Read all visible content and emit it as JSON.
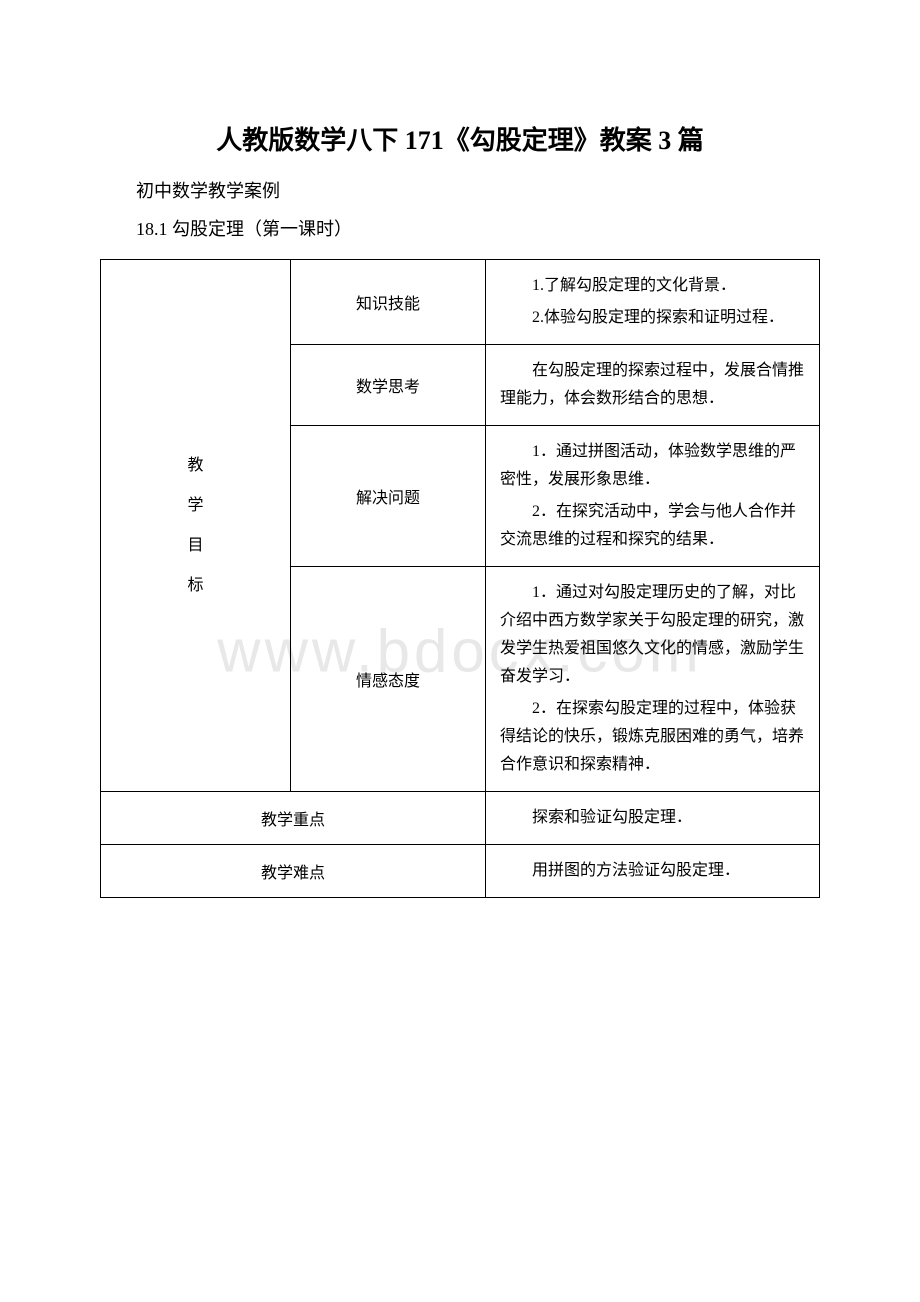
{
  "watermark": "www.bdocx.com",
  "title": "人教版数学八下 171《勾股定理》教案 3 篇",
  "introLine": "初中数学教学案例",
  "lessonLine": "18.1 勾股定理（第一课时）",
  "table": {
    "mainLabel": {
      "line1": "教",
      "line2": "学",
      "line3": "目",
      "line4": "标"
    },
    "rows": [
      {
        "sublabel": "知识技能",
        "content": {
          "p1": "1.了解勾股定理的文化背景．",
          "p2": "2.体验勾股定理的探索和证明过程．"
        }
      },
      {
        "sublabel": "数学思考",
        "content": {
          "p1": "在勾股定理的探索过程中，发展合情推理能力，体会数形结合的思想．"
        }
      },
      {
        "sublabel": "解决问题",
        "content": {
          "p1": "1．通过拼图活动，体验数学思维的严密性，发展形象思维．",
          "p2": "2．在探究活动中，学会与他人合作并交流思维的过程和探究的结果．"
        }
      },
      {
        "sublabel": "情感态度",
        "content": {
          "p1": "1．通过对勾股定理历史的了解，对比介绍中西方数学家关于勾股定理的研究，激发学生热爱祖国悠久文化的情感，激励学生奋发学习．",
          "p2": "2．在探索勾股定理的过程中，体验获得结论的快乐，锻炼克服困难的勇气，培养合作意识和探索精神．"
        }
      }
    ],
    "keypoint": {
      "label": "教学重点",
      "content": "探索和验证勾股定理．"
    },
    "difficulty": {
      "label": "教学难点",
      "content": "用拼图的方法验证勾股定理．"
    }
  }
}
